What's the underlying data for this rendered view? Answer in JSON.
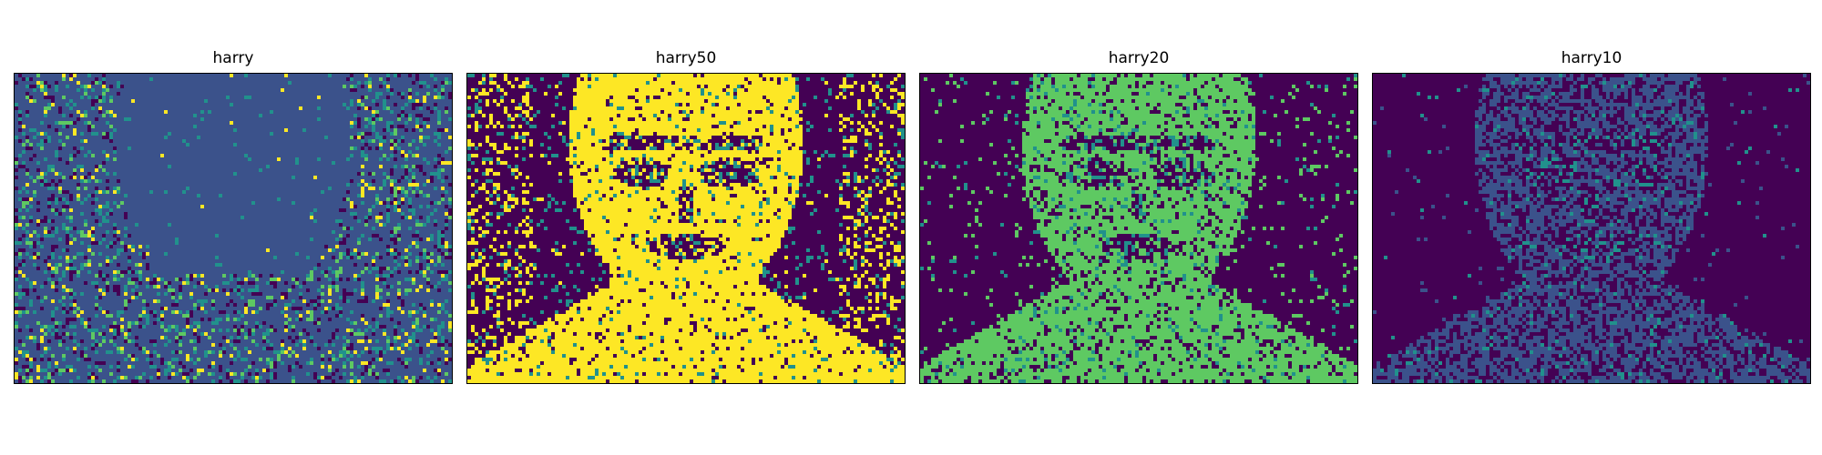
{
  "figure": {
    "panels": [
      {
        "title": "harry",
        "image_semantic": "noisy-portrait-heatmap",
        "colormap": "viridis",
        "background_color": "#3b528b",
        "accent_colors": [
          "#21918c",
          "#5ec962",
          "#fde725"
        ]
      },
      {
        "title": "harry50",
        "image_semantic": "thresholded-portrait-yellow",
        "colormap": "viridis",
        "background_color": "#440154",
        "accent_colors": [
          "#fde725",
          "#21918c"
        ]
      },
      {
        "title": "harry20",
        "image_semantic": "thresholded-portrait-green",
        "colormap": "viridis",
        "background_color": "#440154",
        "accent_colors": [
          "#5ec962",
          "#21918c"
        ]
      },
      {
        "title": "harry10",
        "image_semantic": "thresholded-portrait-blue",
        "colormap": "viridis",
        "background_color": "#440154",
        "accent_colors": [
          "#3b528b",
          "#21918c"
        ]
      }
    ]
  }
}
